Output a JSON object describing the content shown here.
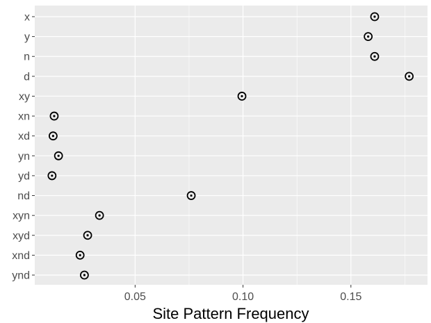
{
  "chart_data": {
    "type": "scatter",
    "title": "",
    "xlabel": "Site Pattern Frequency",
    "ylabel": "",
    "xlim": [
      0.0035,
      0.1855
    ],
    "x_ticks": [
      0.05,
      0.1,
      0.15
    ],
    "x_tick_labels": [
      "0.05",
      "0.10",
      "0.15"
    ],
    "categories": [
      "x",
      "y",
      "n",
      "d",
      "xy",
      "xn",
      "xd",
      "yn",
      "yd",
      "nd",
      "xyn",
      "xyd",
      "xnd",
      "ynd"
    ],
    "values": [
      0.161,
      0.158,
      0.161,
      0.177,
      0.0995,
      0.0125,
      0.012,
      0.0145,
      0.0115,
      0.076,
      0.0335,
      0.028,
      0.0245,
      0.0265
    ],
    "grid": true,
    "marker": "circled-dot",
    "panel_color": "#ebebeb",
    "grid_color": "#ffffff"
  }
}
